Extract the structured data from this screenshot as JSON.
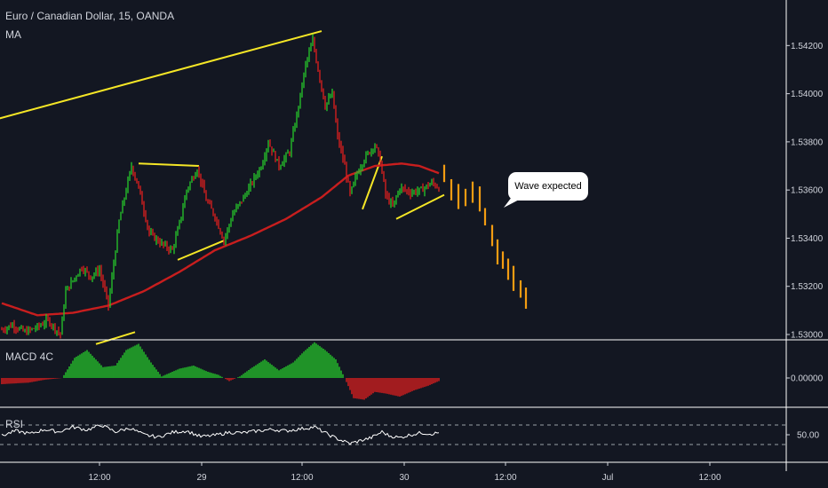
{
  "header": {
    "title": "Euro / Canadian Dollar, 15, OANDA",
    "ma_label": "MA"
  },
  "panes": {
    "macd_label": "MACD 4C",
    "rsi_label": "RSI"
  },
  "annotation": {
    "text": "Wave expected"
  },
  "colors": {
    "background": "#131722",
    "up_bar": "#26c92b",
    "down_bar": "#e01e1e",
    "forecast_bar": "#f39c12",
    "ma_line": "#c81e1e",
    "trendline": "#f5e626",
    "rsi_line": "#ffffff",
    "axis_line": "#ffffff"
  },
  "chart_data": {
    "type": "bar",
    "title": "Euro / Canadian Dollar, 15, OANDA",
    "price_axis": {
      "ticks": [
        "1.54200",
        "1.54000",
        "1.53800",
        "1.53600",
        "1.53400",
        "1.53200",
        "1.53000"
      ],
      "range": [
        1.5296,
        1.543
      ]
    },
    "macd_axis": {
      "ticks": [
        "0.00000"
      ]
    },
    "rsi_axis": {
      "ticks": [
        "50.00"
      ],
      "levels": [
        30,
        70
      ]
    },
    "time_axis": {
      "labels": [
        "12:00",
        "29",
        "12:00",
        "30",
        "12:00",
        "Jul",
        "12:00"
      ]
    },
    "price_series": {
      "name": "EUR/CAD",
      "keypoints": [
        [
          0,
          1.5302
        ],
        [
          6,
          1.5304
        ],
        [
          13,
          1.5301
        ],
        [
          20,
          1.5303
        ],
        [
          26,
          1.5306
        ],
        [
          33,
          1.53
        ],
        [
          36,
          1.5318
        ],
        [
          45,
          1.5328
        ],
        [
          50,
          1.5324
        ],
        [
          55,
          1.5327
        ],
        [
          60,
          1.5312
        ],
        [
          66,
          1.5347
        ],
        [
          73,
          1.537
        ],
        [
          77,
          1.5361
        ],
        [
          83,
          1.5342
        ],
        [
          91,
          1.5337
        ],
        [
          96,
          1.5335
        ],
        [
          100,
          1.5346
        ],
        [
          104,
          1.536
        ],
        [
          110,
          1.5369
        ],
        [
          115,
          1.5356
        ],
        [
          120,
          1.5349
        ],
        [
          125,
          1.5339
        ],
        [
          130,
          1.535
        ],
        [
          137,
          1.5358
        ],
        [
          146,
          1.537
        ],
        [
          150,
          1.538
        ],
        [
          156,
          1.537
        ],
        [
          162,
          1.5376
        ],
        [
          167,
          1.5395
        ],
        [
          171,
          1.5412
        ],
        [
          175,
          1.5422
        ],
        [
          178,
          1.541
        ],
        [
          182,
          1.5395
        ],
        [
          186,
          1.54
        ],
        [
          189,
          1.5382
        ],
        [
          193,
          1.537
        ],
        [
          196,
          1.5358
        ],
        [
          200,
          1.5367
        ],
        [
          204,
          1.5373
        ],
        [
          210,
          1.5379
        ],
        [
          213,
          1.5372
        ],
        [
          216,
          1.5358
        ],
        [
          220,
          1.5353
        ],
        [
          224,
          1.5361
        ],
        [
          230,
          1.5359
        ],
        [
          236,
          1.536
        ],
        [
          242,
          1.5363
        ],
        [
          246,
          1.5361
        ]
      ]
    },
    "moving_average": {
      "name": "MA",
      "keypoints": [
        [
          0,
          1.5313
        ],
        [
          20,
          1.5308
        ],
        [
          40,
          1.5309
        ],
        [
          60,
          1.5312
        ],
        [
          80,
          1.5318
        ],
        [
          100,
          1.5326
        ],
        [
          120,
          1.5335
        ],
        [
          140,
          1.5341
        ],
        [
          160,
          1.5348
        ],
        [
          180,
          1.5357
        ],
        [
          195,
          1.5366
        ],
        [
          210,
          1.537
        ],
        [
          225,
          1.5371
        ],
        [
          235,
          1.537
        ],
        [
          246,
          1.5367
        ]
      ]
    },
    "forecast_series": {
      "name": "forecast",
      "keypoints": [
        [
          249,
          1.5366
        ],
        [
          253,
          1.5359
        ],
        [
          257,
          1.5356
        ],
        [
          261,
          1.5356
        ],
        [
          265,
          1.5358
        ],
        [
          269,
          1.5355
        ],
        [
          272,
          1.5348
        ],
        [
          276,
          1.534
        ],
        [
          279,
          1.5333
        ],
        [
          282,
          1.533
        ],
        [
          285,
          1.5326
        ],
        [
          288,
          1.5322
        ],
        [
          292,
          1.5318
        ],
        [
          295,
          1.5314
        ]
      ]
    },
    "macd_histogram": {
      "keypoints": [
        [
          0,
          -4e-05
        ],
        [
          15,
          -3e-05
        ],
        [
          25,
          -1e-05
        ],
        [
          34,
          0.0
        ],
        [
          41,
          0.00013
        ],
        [
          48,
          0.00018
        ],
        [
          57,
          7e-05
        ],
        [
          64,
          8e-05
        ],
        [
          70,
          0.00018
        ],
        [
          77,
          0.00022
        ],
        [
          84,
          0.0001
        ],
        [
          90,
          1e-05
        ],
        [
          100,
          6e-05
        ],
        [
          108,
          8e-05
        ],
        [
          116,
          4e-05
        ],
        [
          122,
          2e-05
        ],
        [
          128,
          -2e-05
        ],
        [
          134,
          1e-05
        ],
        [
          140,
          6e-05
        ],
        [
          148,
          0.00012
        ],
        [
          156,
          5e-05
        ],
        [
          164,
          0.0001
        ],
        [
          170,
          0.00017
        ],
        [
          176,
          0.00023
        ],
        [
          182,
          0.00018
        ],
        [
          188,
          0.00012
        ],
        [
          193,
          0.0
        ],
        [
          198,
          -0.00013
        ],
        [
          204,
          -0.00014
        ],
        [
          210,
          -9e-05
        ],
        [
          216,
          -0.0001
        ],
        [
          224,
          -0.00012
        ],
        [
          232,
          -8e-05
        ],
        [
          240,
          -5e-05
        ],
        [
          246,
          -2e-05
        ]
      ]
    },
    "rsi": {
      "keypoints": [
        [
          0,
          48
        ],
        [
          8,
          58
        ],
        [
          16,
          52
        ],
        [
          24,
          61
        ],
        [
          32,
          56
        ],
        [
          40,
          66
        ],
        [
          48,
          60
        ],
        [
          56,
          70
        ],
        [
          64,
          56
        ],
        [
          72,
          64
        ],
        [
          80,
          50
        ],
        [
          88,
          45
        ],
        [
          96,
          55
        ],
        [
          104,
          58
        ],
        [
          112,
          46
        ],
        [
          120,
          49
        ],
        [
          128,
          55
        ],
        [
          136,
          54
        ],
        [
          144,
          58
        ],
        [
          152,
          61
        ],
        [
          160,
          58
        ],
        [
          168,
          62
        ],
        [
          176,
          66
        ],
        [
          184,
          50
        ],
        [
          190,
          40
        ],
        [
          196,
          32
        ],
        [
          202,
          38
        ],
        [
          208,
          44
        ],
        [
          214,
          56
        ],
        [
          218,
          48
        ],
        [
          224,
          44
        ],
        [
          230,
          50
        ],
        [
          236,
          54
        ],
        [
          242,
          52
        ],
        [
          246,
          54
        ]
      ]
    },
    "trendlines": [
      {
        "from": [
          -5,
          1.5389
        ],
        "to": [
          180,
          1.5426
        ]
      },
      {
        "from": [
          77,
          1.5371
        ],
        "to": [
          111,
          1.537
        ]
      },
      {
        "from": [
          99,
          1.5331
        ],
        "to": [
          125,
          1.5339
        ]
      },
      {
        "from": [
          203,
          1.5352
        ],
        "to": [
          214,
          1.5374
        ]
      },
      {
        "from": [
          222,
          1.5348
        ],
        "to": [
          249,
          1.5358
        ]
      },
      {
        "from": [
          53,
          1.5296
        ],
        "to": [
          75,
          1.5301
        ]
      }
    ]
  }
}
